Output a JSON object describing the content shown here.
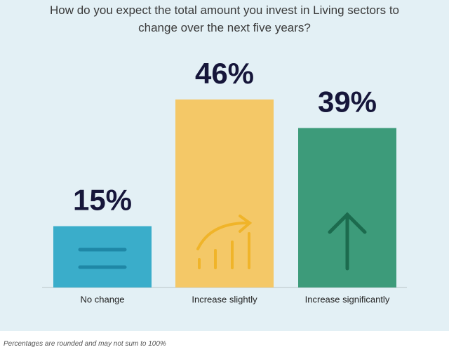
{
  "chart_data": {
    "type": "bar",
    "title": "How do you expect the total amount you invest in Living sectors to change over the next five years?",
    "categories": [
      "No change",
      "Increase slightly",
      "Increase significantly"
    ],
    "values": [
      15,
      46,
      39
    ],
    "value_labels": [
      "15%",
      "46%",
      "39%"
    ],
    "colors": [
      "#3aadca",
      "#f4c867",
      "#3d9b7a"
    ],
    "footnote": "Percentages are rounded and may not sum to 100%"
  }
}
